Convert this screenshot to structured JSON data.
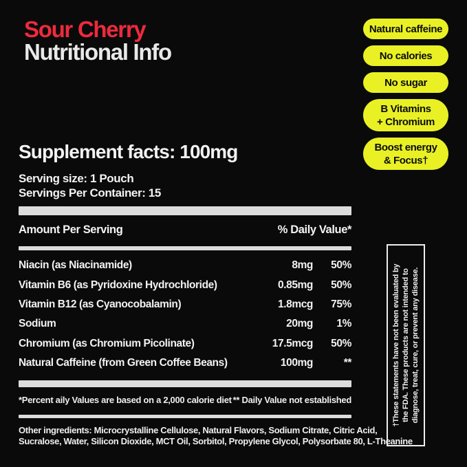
{
  "header": {
    "product_line": "Sour Cherry",
    "subtitle": "Nutritional Info"
  },
  "badges": [
    {
      "lines": [
        "Natural caffeine"
      ]
    },
    {
      "lines": [
        "No calories"
      ]
    },
    {
      "lines": [
        "No sugar"
      ]
    },
    {
      "lines": [
        "B Vitamins",
        "+ Chromium"
      ]
    },
    {
      "lines": [
        "Boost energy",
        "& Focus†"
      ]
    }
  ],
  "facts": {
    "title": "Supplement facts: 100mg",
    "serving_size": "Serving size: 1 Pouch",
    "servings_per_container": "Servings Per Container: 15",
    "table": {
      "col_amount": "Amount Per Serving",
      "col_daily_value": "% Daily Value*",
      "rows": [
        {
          "label": "Niacin (as Niacinamide)",
          "amount": "8mg",
          "daily_value": "50%"
        },
        {
          "label": "Vitamin B6 (as Pyridoxine Hydrochloride)",
          "amount": "0.85mg",
          "daily_value": "50%"
        },
        {
          "label": "Vitamin B12 (as Cyanocobalamin)",
          "amount": "1.8mcg",
          "daily_value": "75%"
        },
        {
          "label": "Sodium",
          "amount": "20mg",
          "daily_value": "1%"
        },
        {
          "label": "Chromium (as Chromium Picolinate)",
          "amount": "17.5mcg",
          "daily_value": "50%"
        },
        {
          "label": "Natural Caffeine (from Green Coffee Beans)",
          "amount": "100mg",
          "daily_value": "**"
        }
      ]
    },
    "footnotes": {
      "left": "*Percent aily Values are based on a 2,000 calorie diet",
      "right": "** Daily Value not established"
    },
    "other_ingredients": {
      "line1": "Other ingredients: Microcrystalline Cellulose, Natural Flavors, Sodium Citrate, Citric Acid,",
      "line2": "Sucralose, Water, Silicon Dioxide, MCT Oil, Sorbitol, Propylene Glycol, Polysorbate 80, L-Theanine"
    }
  },
  "fda_disclaimer": {
    "lines": [
      "†These statements have not been evaluated by",
      "the FDA. These products are not intended to",
      "diagnose, treat, cure, or prevent any disease."
    ]
  },
  "colors": {
    "background": "#0a0a0b",
    "title_red": "#ed2b3c",
    "badge_yellow": "#e9f124",
    "badge_text": "#0c0c0c",
    "text_white": "#f0f0f0",
    "bar_gray": "#dcdcdc"
  }
}
